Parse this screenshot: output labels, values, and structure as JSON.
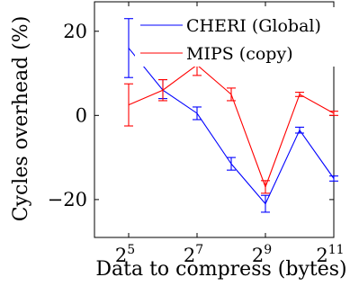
{
  "chart_data": {
    "type": "line",
    "xlabel": "Data to compress (bytes)",
    "ylabel": "Cycles overhead (%)",
    "xscale": "log2",
    "xlim": [
      16,
      2048
    ],
    "ylim": [
      -29,
      27
    ],
    "grid": false,
    "legend_position": "top-right",
    "x_ticks": [
      {
        "value": 32,
        "base": "2",
        "exp": "5"
      },
      {
        "value": 128,
        "base": "2",
        "exp": "7"
      },
      {
        "value": 512,
        "base": "2",
        "exp": "9"
      },
      {
        "value": 2048,
        "base": "2",
        "exp": "11"
      }
    ],
    "y_ticks": [
      {
        "value": 20,
        "label": "20"
      },
      {
        "value": 0,
        "label": "0"
      },
      {
        "value": -20,
        "label": "−20"
      }
    ],
    "series": [
      {
        "name": "CHERI (Global)",
        "color": "#0000ff",
        "points": [
          {
            "x": 32,
            "y": 16.0,
            "lo": 9.0,
            "hi": 23.0
          },
          {
            "x": 64,
            "y": 6.0,
            "lo": 4.0,
            "hi": 8.5
          },
          {
            "x": 128,
            "y": 0.5,
            "lo": -1.0,
            "hi": 2.0
          },
          {
            "x": 256,
            "y": -11.5,
            "lo": -13.0,
            "hi": -10.0
          },
          {
            "x": 512,
            "y": -21.0,
            "lo": -23.0,
            "hi": -19.0
          },
          {
            "x": 1024,
            "y": -3.5,
            "lo": -4.2,
            "hi": -2.8
          },
          {
            "x": 2048,
            "y": -15.0,
            "lo": -15.6,
            "hi": -14.4
          }
        ]
      },
      {
        "name": "MIPS (copy)",
        "color": "#ff0000",
        "points": [
          {
            "x": 32,
            "y": 2.5,
            "lo": -2.5,
            "hi": 7.5
          },
          {
            "x": 64,
            "y": 6.0,
            "lo": 3.5,
            "hi": 8.5
          },
          {
            "x": 128,
            "y": 12.0,
            "lo": 9.5,
            "hi": 14.5
          },
          {
            "x": 256,
            "y": 5.0,
            "lo": 3.5,
            "hi": 6.5
          },
          {
            "x": 512,
            "y": -17.0,
            "lo": -18.5,
            "hi": -15.5
          },
          {
            "x": 1024,
            "y": 5.0,
            "lo": 4.5,
            "hi": 5.5
          },
          {
            "x": 2048,
            "y": 0.5,
            "lo": 0.0,
            "hi": 1.0
          }
        ]
      }
    ]
  }
}
